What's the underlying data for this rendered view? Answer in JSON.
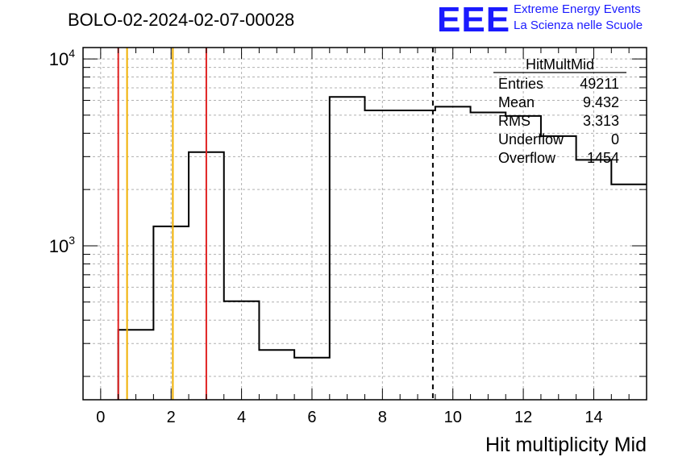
{
  "title": "BOLO-02-2024-02-07-00028",
  "logo": {
    "mark": "EEE",
    "line1": "Extreme Energy Events",
    "line2": "La Scienza nelle Scuole",
    "color": "#1a1aff"
  },
  "stats": {
    "name": "HitMultMid",
    "rows": [
      {
        "label": "Entries",
        "value": "49211"
      },
      {
        "label": "Mean",
        "value": "9.432"
      },
      {
        "label": "RMS",
        "value": "3.313"
      },
      {
        "label": "Underflow",
        "value": "0"
      },
      {
        "label": "Overflow",
        "value": "1454"
      }
    ]
  },
  "chart_data": {
    "type": "bar",
    "subtype": "histogram-step",
    "xlabel": "Hit multiplicity Mid",
    "ylabel": "",
    "xlim": [
      -0.5,
      15.5
    ],
    "ylim": [
      150,
      11500
    ],
    "log_y": true,
    "grid": true,
    "x_ticks": [
      0,
      2,
      4,
      6,
      8,
      10,
      12,
      14
    ],
    "y_ticks": [
      {
        "value": 1000,
        "label": "10",
        "exp": "3"
      },
      {
        "value": 10000,
        "label": "10",
        "exp": "4"
      }
    ],
    "bins": [
      {
        "low": 0.5,
        "high": 1.5,
        "value": 355
      },
      {
        "low": 1.5,
        "high": 2.5,
        "value": 1270
      },
      {
        "low": 2.5,
        "high": 3.5,
        "value": 3170
      },
      {
        "low": 3.5,
        "high": 4.5,
        "value": 505
      },
      {
        "low": 4.5,
        "high": 5.5,
        "value": 277
      },
      {
        "low": 5.5,
        "high": 6.5,
        "value": 252
      },
      {
        "low": 6.5,
        "high": 7.5,
        "value": 6260
      },
      {
        "low": 7.5,
        "high": 9.5,
        "value": 5300
      },
      {
        "low": 9.5,
        "high": 10.5,
        "value": 5550
      },
      {
        "low": 10.5,
        "high": 11.5,
        "value": 5170
      },
      {
        "low": 11.5,
        "high": 12.5,
        "value": 4950
      },
      {
        "low": 12.5,
        "high": 13.5,
        "value": 3860
      },
      {
        "low": 13.5,
        "high": 14.5,
        "value": 2880
      },
      {
        "low": 14.5,
        "high": 15.5,
        "value": 2130
      }
    ],
    "vertical_lines": [
      {
        "x": 0.5,
        "color": "#e02020",
        "style": "solid"
      },
      {
        "x": 0.75,
        "color": "#f0b000",
        "style": "solid"
      },
      {
        "x": 2.05,
        "color": "#f0b000",
        "style": "solid"
      },
      {
        "x": 3.0,
        "color": "#e02020",
        "style": "solid"
      },
      {
        "x": 9.432,
        "color": "#000000",
        "style": "dashed"
      }
    ]
  }
}
